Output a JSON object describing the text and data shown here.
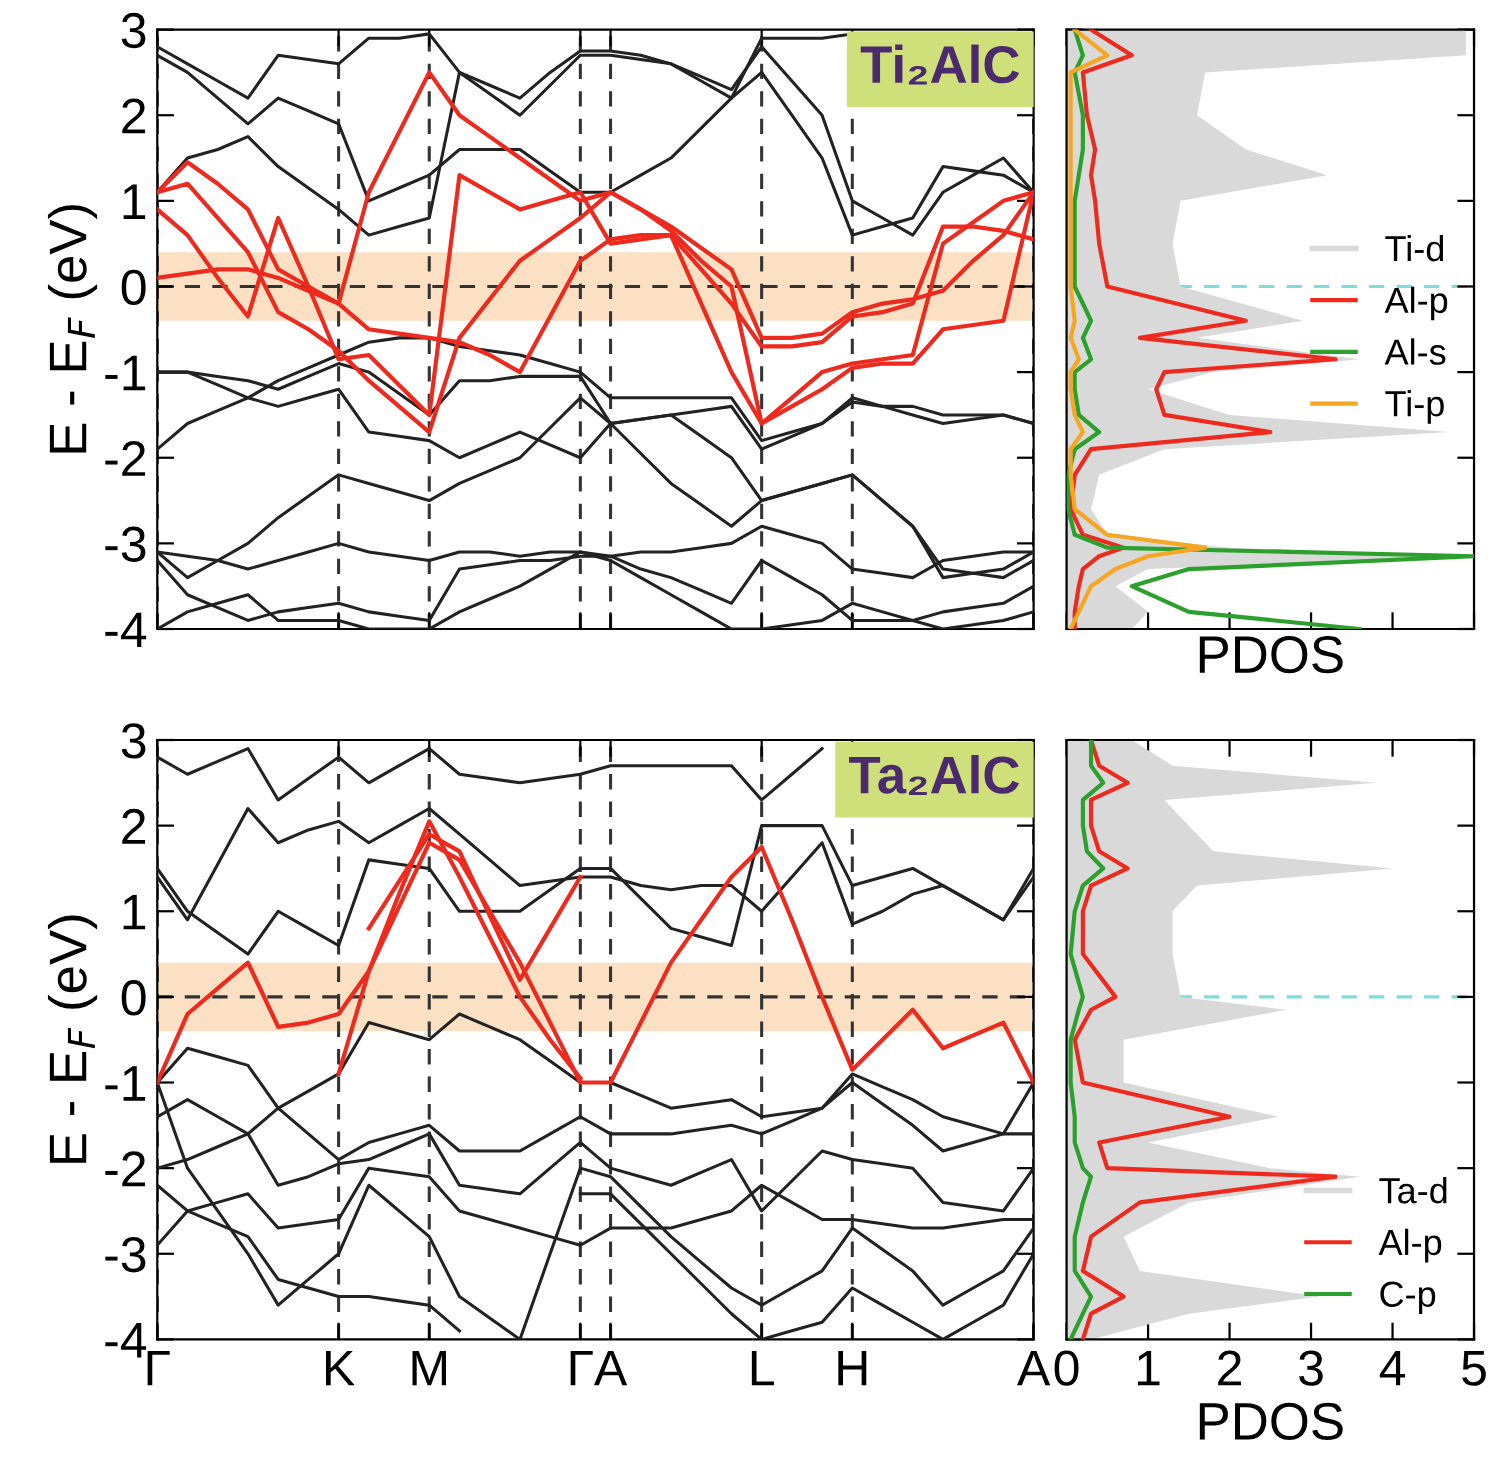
{
  "chart_data": [
    {
      "type": "line",
      "ylabel": "E - E$_{F}$ (eV)",
      "annotations": [
        "Ti₂AlC"
      ],
      "ylim": [
        -4,
        3
      ],
      "yticks": [
        -4,
        -3,
        -2,
        -1,
        0,
        1,
        2,
        3
      ],
      "tick_labels": "y",
      "grid": "x",
      "categories": [
        null,
        null,
        null,
        null,
        null,
        null,
        null,
        null,
        null,
        null,
        null,
        null,
        null,
        null,
        null,
        null,
        null,
        null,
        null,
        null,
        null,
        null,
        null,
        null,
        null,
        null,
        null,
        null,
        null,
        null
      ],
      "ref_lines": [
        {
          "axis": "y",
          "value": 0,
          "color": "#333333",
          "line_style": "dashed"
        }
      ],
      "bands": [
        {
          "axis": "y",
          "from": -0.4,
          "to": 0.4,
          "color": "#fbe0c4"
        }
      ],
      "series": [
        {
          "color": "#222222",
          "values": [
            2.8,
            2.6,
            2.4,
            2.2,
            2.7,
            2.65,
            2.6,
            2.9,
            2.9,
            2.95,
            2.5,
            2.25,
            2.0,
            2.35,
            2.7,
            2.7,
            2.65,
            2.6,
            2.45,
            2.3,
            2.8,
            2.4,
            2.0,
            1.0,
            0.8,
            0.6,
            1.1,
            1.3,
            1.5,
            1.1
          ]
        },
        {
          "color": "#222222",
          "values": [
            2.7,
            2.5,
            2.2,
            1.9,
            2.2,
            2.05,
            1.9,
            1.0,
            1.15,
            1.3,
            1.6,
            1.6,
            1.6,
            1.35,
            1.1,
            1.1,
            1.3,
            1.5,
            1.85,
            2.2,
            2.5,
            2.0,
            1.5,
            0.6,
            0.7,
            0.8,
            1.4,
            1.35,
            1.3,
            1.1
          ]
        },
        {
          "color": "#222222",
          "values": [
            1.1,
            1.5,
            1.6,
            1.75,
            1.4,
            1.15,
            0.9,
            0.6,
            0.7,
            0.8,
            2.5,
            2.35,
            2.2,
            2.5,
            2.75,
            2.75,
            2.7,
            2.6,
            2.4,
            2.2,
            2.9,
            2.9,
            2.9,
            2.95,
            null,
            null,
            null,
            null,
            null,
            null
          ]
        },
        {
          "color": "#222222",
          "values": [
            -1.0,
            -1.0,
            -1.05,
            -1.1,
            -1.2,
            -1.05,
            -0.9,
            -1.0,
            -1.25,
            -1.5,
            -1.1,
            -1.1,
            -1.05,
            -1.05,
            -1.05,
            -1.6,
            -1.55,
            -1.5,
            -1.45,
            -1.4,
            -1.9,
            -1.75,
            -1.6,
            -1.35,
            -1.4,
            -1.4,
            -1.5,
            -1.5,
            -1.5,
            -1.6
          ]
        },
        {
          "color": "#222222",
          "values": [
            -1.9,
            -1.6,
            -1.45,
            -1.3,
            -1.1,
            -0.95,
            -0.8,
            -0.65,
            -0.6,
            -0.6,
            -0.7,
            -0.75,
            -0.8,
            -0.9,
            -1.0,
            -1.3,
            -1.3,
            -1.3,
            -1.3,
            -1.3,
            -1.8,
            -1.7,
            -1.6,
            -1.3,
            -1.4,
            -1.5,
            -1.6,
            -1.55,
            -1.5,
            -1.6
          ]
        },
        {
          "color": "#222222",
          "values": [
            -1.0,
            -1.0,
            -1.15,
            -1.3,
            -1.4,
            -1.3,
            -1.2,
            -1.7,
            -1.75,
            -1.8,
            -2.0,
            -1.85,
            -1.7,
            -1.85,
            -2.0,
            -1.6,
            -1.55,
            -1.5,
            -1.75,
            -2.0,
            -2.5,
            -2.4,
            -2.3,
            -2.2,
            -2.5,
            -2.8,
            -3.4,
            -3.35,
            -3.3,
            -3.1
          ]
        },
        {
          "color": "#222222",
          "values": [
            -3.1,
            -3.4,
            -3.2,
            -3.0,
            -2.7,
            -2.45,
            -2.2,
            -2.3,
            -2.4,
            -2.5,
            -2.3,
            -2.15,
            -2.0,
            -1.65,
            -1.3,
            -1.6,
            -1.95,
            -2.3,
            -2.55,
            -2.8,
            -2.5,
            -2.4,
            -2.3,
            -2.2,
            -2.5,
            -2.8,
            -3.3,
            -3.35,
            -3.4,
            -3.2
          ]
        },
        {
          "color": "#222222",
          "values": [
            -3.1,
            -3.15,
            -3.2,
            -3.3,
            -3.2,
            -3.1,
            -3.0,
            -3.1,
            -3.15,
            -3.2,
            -3.1,
            -3.1,
            -3.15,
            -3.1,
            -3.1,
            -3.15,
            -3.1,
            -3.1,
            -3.05,
            -3.0,
            -2.8,
            -2.9,
            -3.0,
            -3.3,
            -3.35,
            -3.4,
            -3.2,
            -3.15,
            -3.1,
            -3.1
          ]
        },
        {
          "color": "#222222",
          "values": [
            -3.2,
            -3.6,
            -3.75,
            -3.9,
            -3.8,
            -3.75,
            -3.7,
            -3.8,
            -3.85,
            -3.9,
            -3.3,
            -3.25,
            -3.2,
            -3.2,
            -3.15,
            -3.15,
            -3.3,
            -3.4,
            -3.55,
            -3.7,
            -3.2,
            -3.4,
            -3.6,
            -3.9,
            -3.9,
            -3.9,
            -3.8,
            -3.75,
            -3.7,
            -3.5
          ]
        },
        {
          "color": "#222222",
          "values": [
            -4.0,
            -3.8,
            -3.7,
            -3.6,
            -3.9,
            -3.9,
            -3.9,
            -4.0,
            -4.0,
            -4.0,
            -3.8,
            -3.65,
            -3.5,
            -3.3,
            -3.1,
            -3.2,
            -3.4,
            -3.6,
            -3.8,
            -4.0,
            -4.0,
            -3.95,
            -3.9,
            -3.7,
            -3.8,
            -3.9,
            -4.0,
            -3.95,
            -3.9,
            -3.8
          ]
        },
        {
          "color": "#ee2a1e",
          "values": [
            0.1,
            0.15,
            0.2,
            0.2,
            0.1,
            -0.05,
            -0.2,
            1.1,
            1.8,
            2.5,
            2.0,
            1.75,
            1.5,
            1.25,
            1.0,
            1.1,
            0.9,
            0.7,
            0.45,
            0.2,
            -0.6,
            -0.6,
            -0.55,
            -0.3,
            -0.2,
            -0.15,
            -0.05,
            0.3,
            0.6,
            1.1
          ]
        },
        {
          "color": "#ee2a1e",
          "values": [
            1.1,
            1.45,
            1.2,
            0.9,
            0.2,
            0.0,
            -0.2,
            -0.5,
            -0.55,
            -0.6,
            -0.65,
            -0.8,
            -1.0,
            -0.35,
            0.3,
            0.55,
            0.6,
            0.6,
            0.2,
            -0.2,
            -0.7,
            -0.7,
            -0.65,
            -0.35,
            -0.3,
            -0.2,
            0.7,
            0.7,
            0.65,
            0.55
          ]
        },
        {
          "color": "#ee2a1e",
          "values": [
            1.1,
            1.2,
            0.8,
            0.4,
            -0.3,
            -0.5,
            -0.75,
            -1.1,
            -1.4,
            -1.7,
            -0.6,
            -0.15,
            0.3,
            0.55,
            0.8,
            1.1,
            0.9,
            0.65,
            0.3,
            0.0,
            -1.6,
            -1.4,
            -1.2,
            -0.95,
            -0.9,
            -0.9,
            -0.5,
            -0.45,
            -0.4,
            1.1
          ]
        },
        {
          "color": "#ee2a1e",
          "values": [
            0.9,
            0.6,
            0.1,
            -0.35,
            0.8,
            0.0,
            -0.85,
            -0.8,
            -1.15,
            -1.5,
            1.3,
            1.1,
            0.9,
            1.0,
            1.1,
            0.5,
            0.55,
            0.6,
            -0.2,
            -1.0,
            -1.6,
            -1.3,
            -1.0,
            -0.9,
            -0.85,
            -0.8,
            0.5,
            0.75,
            1.0,
            1.1
          ]
        }
      ]
    },
    {
      "type": "line",
      "orientation": "horizontal",
      "xlabel": "PDOS",
      "xlim": [
        0,
        5
      ],
      "xticks": [
        0,
        1,
        2,
        3,
        4,
        5
      ],
      "ylim": [
        -4,
        3
      ],
      "yticks": [
        -4,
        -3,
        -2,
        -1,
        0,
        1,
        2,
        3
      ],
      "tick_labels": false,
      "legend": "right",
      "ref_lines": [
        {
          "axis": "y",
          "value": 0,
          "color": "#7fdcdc",
          "line_style": "dashed"
        }
      ],
      "x": [
        3.0,
        2.7,
        2.5,
        2.0,
        1.6,
        1.3,
        1.0,
        0.5,
        0.0,
        -0.4,
        -0.6,
        -0.85,
        -1.0,
        -1.2,
        -1.5,
        -1.7,
        -1.9,
        -2.2,
        -2.6,
        -2.9,
        -3.05,
        -3.15,
        -3.3,
        -3.5,
        -3.8,
        -4.0
      ],
      "series": [
        {
          "name": "Ti-d",
          "type": "area",
          "color": "#d9d9d9",
          "values": [
            4.9,
            4.9,
            1.7,
            1.6,
            2.2,
            3.2,
            1.4,
            1.3,
            1.4,
            2.9,
            1.6,
            3.6,
            1.8,
            1.0,
            2.0,
            4.7,
            1.2,
            0.4,
            0.3,
            0.5,
            2.0,
            4.9,
            1.0,
            0.6,
            1.0,
            0.8
          ]
        },
        {
          "name": "Al-p",
          "color": "#ee2a1e",
          "values": [
            0.3,
            0.8,
            0.2,
            0.25,
            0.35,
            0.3,
            0.35,
            0.4,
            0.5,
            2.2,
            0.9,
            3.3,
            1.2,
            1.1,
            1.2,
            2.5,
            0.3,
            0.1,
            0.05,
            0.2,
            0.7,
            0.4,
            0.2,
            0.15,
            0.1,
            0.1
          ]
        },
        {
          "name": "Al-s",
          "color": "#2ca02c",
          "values": [
            0.1,
            0.2,
            0.1,
            0.2,
            0.2,
            0.15,
            0.1,
            0.1,
            0.1,
            0.3,
            0.2,
            0.3,
            0.1,
            0.1,
            0.15,
            0.4,
            0.1,
            0.02,
            0.02,
            0.1,
            0.5,
            5.0,
            1.5,
            0.8,
            1.5,
            3.6
          ]
        },
        {
          "name": "Ti-p",
          "color": "#f5a623",
          "values": [
            0.1,
            0.5,
            0.05,
            0.05,
            0.05,
            0.05,
            0.05,
            0.05,
            0.05,
            0.1,
            0.05,
            0.15,
            0.05,
            0.05,
            0.1,
            0.2,
            0.05,
            0.05,
            0.1,
            0.5,
            1.7,
            1.0,
            0.6,
            0.3,
            0.15,
            0.05
          ]
        }
      ]
    },
    {
      "type": "line",
      "ylabel": "E - E$_{F}$ (eV)",
      "annotations": [
        "Ta₂AlC"
      ],
      "ylim": [
        -4,
        3
      ],
      "yticks": [
        -4,
        -3,
        -2,
        -1,
        0,
        1,
        2,
        3
      ],
      "grid": "x",
      "categories": [
        "Γ",
        null,
        null,
        null,
        null,
        null,
        "K",
        null,
        null,
        "M",
        null,
        null,
        null,
        null,
        "Γ",
        "A",
        null,
        null,
        null,
        null,
        "L",
        null,
        null,
        "H",
        null,
        null,
        null,
        null,
        null,
        "A"
      ],
      "ref_lines": [
        {
          "axis": "y",
          "value": 0,
          "color": "#333333",
          "line_style": "dashed"
        }
      ],
      "bands": [
        {
          "axis": "y",
          "from": -0.4,
          "to": 0.4,
          "color": "#fbe0c4"
        }
      ],
      "series": [
        {
          "color": "#222222",
          "values": [
            1.5,
            1.0,
            0.75,
            0.5,
            1.0,
            0.8,
            0.6,
            1.6,
            1.55,
            1.5,
            1.0,
            1.0,
            1.0,
            1.25,
            1.5,
            1.5,
            1.15,
            0.8,
            0.7,
            0.6,
            2.0,
            2.0,
            2.0,
            1.3,
            1.4,
            1.5,
            1.3,
            1.1,
            0.9,
            1.5
          ]
        },
        {
          "color": "#222222",
          "values": [
            1.4,
            0.9,
            1.55,
            2.2,
            1.8,
            1.95,
            2.05,
            1.8,
            2.0,
            2.2,
            1.9,
            1.6,
            1.3,
            1.35,
            1.4,
            1.4,
            1.3,
            1.25,
            1.3,
            1.3,
            1.0,
            1.4,
            1.8,
            0.85,
            1.0,
            1.2,
            1.3,
            1.1,
            0.9,
            1.4
          ]
        },
        {
          "color": "#222222",
          "values": [
            2.8,
            2.6,
            2.75,
            2.9,
            2.3,
            2.55,
            2.8,
            2.5,
            2.7,
            2.9,
            2.6,
            2.55,
            2.5,
            2.55,
            2.6,
            2.7,
            2.7,
            2.7,
            2.7,
            2.7,
            2.3,
            2.6,
            2.9,
            null,
            null,
            null,
            null,
            null,
            null,
            null
          ]
        },
        {
          "color": "#222222",
          "values": [
            -1.0,
            -0.6,
            -0.7,
            -0.8,
            -1.3,
            -1.1,
            -0.9,
            -0.3,
            -0.4,
            -0.5,
            -0.2,
            -0.35,
            -0.5,
            -0.75,
            -1.0,
            -1.0,
            -1.15,
            -1.3,
            -1.25,
            -1.2,
            -1.4,
            -1.35,
            -1.3,
            -0.9,
            -1.05,
            -1.2,
            -1.4,
            -1.5,
            -1.6,
            -1.0
          ]
        },
        {
          "color": "#222222",
          "values": [
            -1.4,
            -1.2,
            -1.4,
            -1.6,
            -1.3,
            -1.6,
            -1.9,
            -1.7,
            -1.6,
            -1.5,
            -1.8,
            -1.8,
            -1.8,
            -1.6,
            -1.4,
            -1.6,
            -1.6,
            -1.6,
            -1.55,
            -1.5,
            -1.6,
            -1.45,
            -1.3,
            -1.0,
            -1.25,
            -1.5,
            -1.8,
            -1.7,
            -1.6,
            -1.6
          ]
        },
        {
          "color": "#222222",
          "values": [
            -2.0,
            -1.9,
            -1.75,
            -1.6,
            -2.2,
            -2.1,
            -1.95,
            -1.9,
            -1.75,
            -1.6,
            -2.2,
            -2.25,
            -2.3,
            -2.0,
            -1.7,
            -2.0,
            -2.1,
            -2.2,
            -2.05,
            -1.9,
            -2.5,
            -2.15,
            -1.8,
            -1.9,
            -1.95,
            -2.0,
            -2.4,
            -2.45,
            -2.5,
            -2.0
          ]
        },
        {
          "color": "#222222",
          "values": [
            -2.2,
            -2.5,
            -2.4,
            -2.3,
            -2.7,
            -2.65,
            -2.6,
            -2.0,
            -2.05,
            -2.1,
            -2.5,
            -2.6,
            -2.7,
            -2.8,
            -2.9,
            -2.7,
            -2.7,
            -2.7,
            -2.6,
            -2.5,
            -2.2,
            -2.4,
            -2.6,
            -2.6,
            -2.65,
            -2.7,
            -2.7,
            -2.65,
            -2.6,
            -2.6
          ]
        },
        {
          "color": "#222222",
          "values": [
            -1.0,
            -2.0,
            -2.5,
            -3.0,
            -3.6,
            -3.3,
            -3.0,
            -2.2,
            -2.5,
            -2.8,
            -3.5,
            -3.75,
            -4.0,
            -3.0,
            -2.0,
            -2.1,
            -2.45,
            -2.8,
            -3.1,
            -3.4,
            -3.6,
            -3.4,
            -3.2,
            -2.7,
            -2.95,
            -3.2,
            -3.6,
            -3.4,
            -3.2,
            -2.7
          ]
        },
        {
          "color": "#222222",
          "values": [
            -2.9,
            -2.5,
            -2.65,
            -2.8,
            -3.3,
            -3.4,
            -3.5,
            -3.5,
            -3.55,
            -3.6,
            -3.9,
            null,
            null,
            null,
            -2.3,
            -2.3,
            -2.65,
            -3.0,
            -3.35,
            -3.7,
            -4.0,
            -3.9,
            -3.8,
            -3.4,
            -3.6,
            -3.8,
            -4.0,
            -3.8,
            -3.6,
            -3.0
          ]
        },
        {
          "color": "#ee2a1e",
          "values": [
            -1.0,
            -0.2,
            0.1,
            0.4,
            -0.35,
            -0.3,
            -0.2,
            0.3,
            1.05,
            1.8,
            1.6,
            1.0,
            0.4,
            -0.3,
            -1.0,
            -1.0,
            -0.3,
            0.4,
            0.9,
            1.4,
            1.75,
            0.9,
            0.0,
            -0.85,
            -0.5,
            -0.15,
            -0.6,
            -0.45,
            -0.3,
            -1.0
          ]
        },
        {
          "color": "#ee2a1e",
          "values": [
            null,
            null,
            null,
            null,
            null,
            null,
            -0.9,
            0.3,
            1.2,
            2.05,
            1.4,
            0.7,
            0.0,
            -0.5,
            -0.95,
            null,
            null,
            null,
            null,
            null,
            null,
            null,
            null,
            null,
            null,
            null,
            null,
            null,
            null,
            null
          ]
        },
        {
          "color": "#ee2a1e",
          "values": [
            null,
            null,
            null,
            null,
            null,
            null,
            null,
            0.8,
            1.35,
            1.9,
            1.7,
            0.95,
            0.2,
            0.8,
            1.4,
            null,
            null,
            null,
            null,
            null,
            null,
            null,
            null,
            null,
            null,
            null,
            null,
            null,
            null,
            null
          ]
        }
      ]
    },
    {
      "type": "line",
      "orientation": "horizontal",
      "xlabel": "PDOS",
      "xlim": [
        0,
        5
      ],
      "xticks": [
        0,
        1,
        2,
        3,
        4,
        5
      ],
      "ylim": [
        -4,
        3
      ],
      "yticks": [
        -4,
        -3,
        -2,
        -1,
        0,
        1,
        2,
        3
      ],
      "tick_labels": "x",
      "legend": "bottom right",
      "ref_lines": [
        {
          "axis": "y",
          "value": 0,
          "color": "#7fdcdc",
          "line_style": "dashed"
        }
      ],
      "x": [
        3.0,
        2.7,
        2.5,
        2.3,
        2.0,
        1.7,
        1.5,
        1.3,
        1.0,
        0.5,
        0.0,
        -0.15,
        -0.5,
        -1.0,
        -1.4,
        -1.7,
        -2.0,
        -2.1,
        -2.4,
        -2.8,
        -3.2,
        -3.5,
        -3.7,
        -4.0
      ],
      "series": [
        {
          "name": "Ta-d",
          "type": "area",
          "color": "#d9d9d9",
          "values": [
            0.8,
            1.3,
            3.8,
            1.2,
            1.5,
            1.8,
            4.0,
            1.6,
            1.3,
            1.3,
            1.4,
            2.7,
            0.7,
            0.7,
            2.6,
            1.0,
            2.5,
            3.6,
            1.5,
            0.7,
            0.9,
            3.1,
            1.5,
            0.3
          ]
        },
        {
          "name": "Al-p",
          "color": "#ee2a1e",
          "values": [
            0.3,
            0.4,
            0.75,
            0.3,
            0.3,
            0.4,
            0.75,
            0.3,
            0.2,
            0.2,
            0.6,
            0.3,
            0.1,
            0.2,
            2.0,
            0.4,
            0.5,
            3.3,
            0.9,
            0.3,
            0.2,
            0.7,
            0.3,
            0.2
          ]
        },
        {
          "name": "C-p",
          "color": "#2ca02c",
          "values": [
            0.3,
            0.3,
            0.45,
            0.2,
            0.2,
            0.25,
            0.45,
            0.2,
            0.1,
            0.05,
            0.2,
            0.15,
            0.05,
            0.05,
            0.1,
            0.1,
            0.2,
            0.3,
            0.2,
            0.1,
            0.1,
            0.3,
            0.2,
            0.05
          ]
        }
      ]
    }
  ]
}
